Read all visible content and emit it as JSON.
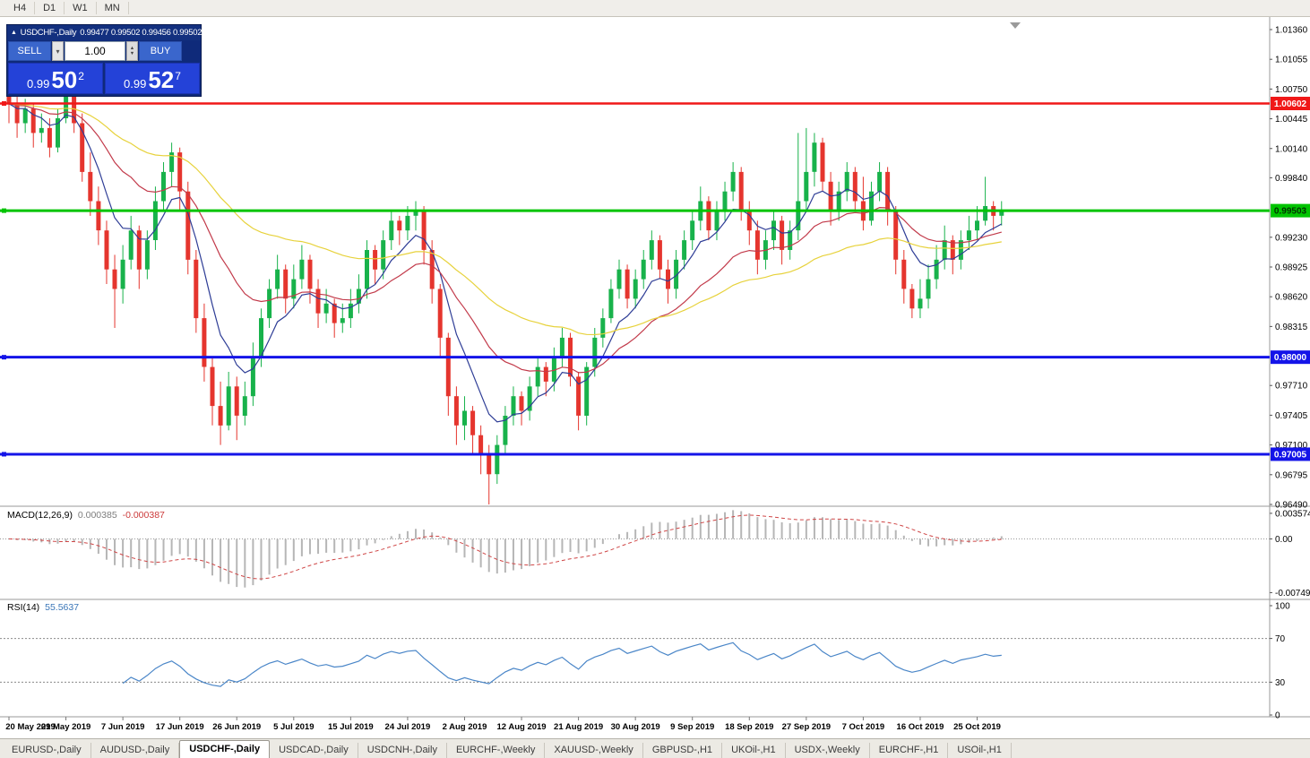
{
  "toolbar": {
    "timeframes": [
      "H4",
      "D1",
      "W1",
      "MN"
    ]
  },
  "icons": {
    "collapse": "▲",
    "dropdown": "▾",
    "spin_up": "▲",
    "spin_down": "▼"
  },
  "chart_header": {
    "symbol": "USDCHF-,Daily",
    "ohlc": "0.99477 0.99502 0.99456 0.99502"
  },
  "trade_panel": {
    "sell_label": "SELL",
    "buy_label": "BUY",
    "volume": "1.00",
    "sell_price": {
      "prefix": "0.99",
      "big": "50",
      "sup": "2"
    },
    "buy_price": {
      "prefix": "0.99",
      "big": "52",
      "sup": "7"
    }
  },
  "colors": {
    "bull": "#18b24b",
    "bear": "#e5352e",
    "macd_hist": "#b6b6b6",
    "macd_signal": "#cf4646",
    "rsi": "#4a86c8"
  },
  "price_axis": {
    "ticks": [
      "1.01360",
      "1.01055",
      "1.00750",
      "1.00445",
      "1.00140",
      "0.99840",
      "0.99230",
      "0.98925",
      "0.98620",
      "0.98315",
      "0.97710",
      "0.97405",
      "0.97100",
      "0.96795",
      "0.96490"
    ]
  },
  "hlines": [
    {
      "price": 1.00602,
      "label": "1.00602",
      "color": "#f01818",
      "text": "#ffffff",
      "width": 2.5
    },
    {
      "price": 0.99503,
      "label": "0.99503",
      "color": "#00c400",
      "text": "#003300",
      "width": 3
    },
    {
      "price": 0.98,
      "label": "0.98000",
      "color": "#1414e8",
      "text": "#ffffff",
      "width": 3
    },
    {
      "price": 0.97005,
      "label": "0.97005",
      "color": "#1414e8",
      "text": "#ffffff",
      "width": 3
    }
  ],
  "macd_panel": {
    "title": "MACD(12,26,9)",
    "value_main": "0.000385",
    "value_signal": "-0.000387",
    "axis": [
      "0.003574",
      "0.00",
      "-0.00749"
    ]
  },
  "rsi_panel": {
    "title": "RSI(14)",
    "value": "55.5637",
    "axis": [
      "100",
      "70",
      "30",
      "0"
    ],
    "levels": [
      70,
      30
    ]
  },
  "chart_data": {
    "type": "candlestick",
    "symbol": "USDCHF",
    "timeframe": "Daily",
    "y_range": [
      0.9649,
      1.0136
    ],
    "rsi_period": 14,
    "macd": {
      "fast": 12,
      "slow": 26,
      "signal": 9
    },
    "moving_averages": [
      {
        "name": "fast",
        "period": 7,
        "color": "#2e3d96"
      },
      {
        "name": "medium",
        "period": 20,
        "color": "#c23a4a"
      },
      {
        "name": "slow",
        "period": 45,
        "color": "#e7d23c"
      }
    ],
    "x_labels": [
      "20 May 2019",
      "29 May 2019",
      "7 Jun 2019",
      "17 Jun 2019",
      "26 Jun 2019",
      "5 Jul 2019",
      "15 Jul 2019",
      "24 Jul 2019",
      "2 Aug 2019",
      "12 Aug 2019",
      "21 Aug 2019",
      "30 Aug 2019",
      "9 Sep 2019",
      "18 Sep 2019",
      "27 Sep 2019",
      "7 Oct 2019",
      "16 Oct 2019",
      "25 Oct 2019"
    ],
    "candles_ohlc": [
      [
        1.008,
        1.009,
        1.004,
        1.006
      ],
      [
        1.006,
        1.007,
        1.0025,
        1.004
      ],
      [
        1.004,
        1.0065,
        1.003,
        1.0055
      ],
      [
        1.0055,
        1.006,
        1.0015,
        1.003
      ],
      [
        1.003,
        1.005,
        1.002,
        1.0035
      ],
      [
        1.0035,
        1.0045,
        1.0005,
        1.0015
      ],
      [
        1.0015,
        1.0055,
        1.001,
        1.0045
      ],
      [
        1.0045,
        1.009,
        1.004,
        1.0075
      ],
      [
        1.0075,
        1.0085,
        1.003,
        1.004
      ],
      [
        1.004,
        1.005,
        0.998,
        0.999
      ],
      [
        0.999,
        1.001,
        0.9945,
        0.996
      ],
      [
        0.996,
        0.9975,
        0.9915,
        0.993
      ],
      [
        0.993,
        0.994,
        0.9875,
        0.989
      ],
      [
        0.989,
        0.9905,
        0.983,
        0.987
      ],
      [
        0.987,
        0.9915,
        0.9855,
        0.99
      ],
      [
        0.99,
        0.9945,
        0.989,
        0.993
      ],
      [
        0.993,
        0.9935,
        0.987,
        0.989
      ],
      [
        0.989,
        0.993,
        0.988,
        0.992
      ],
      [
        0.992,
        0.9975,
        0.991,
        0.996
      ],
      [
        0.996,
        1.0,
        0.995,
        0.999
      ],
      [
        0.999,
        1.002,
        0.9975,
        1.001
      ],
      [
        1.001,
        1.0015,
        0.995,
        0.997
      ],
      [
        0.997,
        0.998,
        0.9885,
        0.99
      ],
      [
        0.99,
        0.991,
        0.9825,
        0.984
      ],
      [
        0.984,
        0.9855,
        0.9775,
        0.979
      ],
      [
        0.979,
        0.98,
        0.973,
        0.975
      ],
      [
        0.975,
        0.9775,
        0.971,
        0.973
      ],
      [
        0.973,
        0.9785,
        0.9725,
        0.977
      ],
      [
        0.977,
        0.978,
        0.9715,
        0.974
      ],
      [
        0.974,
        0.9775,
        0.973,
        0.976
      ],
      [
        0.976,
        0.9815,
        0.975,
        0.98
      ],
      [
        0.98,
        0.985,
        0.979,
        0.984
      ],
      [
        0.984,
        0.988,
        0.983,
        0.987
      ],
      [
        0.987,
        0.9905,
        0.986,
        0.989
      ],
      [
        0.989,
        0.9895,
        0.9845,
        0.986
      ],
      [
        0.986,
        0.9895,
        0.985,
        0.988
      ],
      [
        0.988,
        0.9915,
        0.987,
        0.99
      ],
      [
        0.99,
        0.9905,
        0.9855,
        0.987
      ],
      [
        0.987,
        0.988,
        0.983,
        0.9845
      ],
      [
        0.9845,
        0.987,
        0.9835,
        0.9855
      ],
      [
        0.9855,
        0.986,
        0.982,
        0.9835
      ],
      [
        0.9835,
        0.9855,
        0.9825,
        0.984
      ],
      [
        0.984,
        0.987,
        0.983,
        0.9855
      ],
      [
        0.9855,
        0.9885,
        0.9845,
        0.987
      ],
      [
        0.987,
        0.992,
        0.986,
        0.991
      ],
      [
        0.991,
        0.9915,
        0.9875,
        0.989
      ],
      [
        0.989,
        0.993,
        0.988,
        0.992
      ],
      [
        0.992,
        0.995,
        0.991,
        0.994
      ],
      [
        0.994,
        0.9945,
        0.9915,
        0.993
      ],
      [
        0.993,
        0.9955,
        0.992,
        0.9945
      ],
      [
        0.9945,
        0.996,
        0.993,
        0.995
      ],
      [
        0.995,
        0.9955,
        0.9895,
        0.991
      ],
      [
        0.991,
        0.992,
        0.9855,
        0.987
      ],
      [
        0.987,
        0.9875,
        0.98,
        0.982
      ],
      [
        0.982,
        0.9825,
        0.974,
        0.976
      ],
      [
        0.976,
        0.977,
        0.971,
        0.973
      ],
      [
        0.973,
        0.976,
        0.9715,
        0.9745
      ],
      [
        0.9745,
        0.975,
        0.97,
        0.972
      ],
      [
        0.972,
        0.973,
        0.968,
        0.97
      ],
      [
        0.97,
        0.971,
        0.9649,
        0.968
      ],
      [
        0.968,
        0.972,
        0.967,
        0.971
      ],
      [
        0.971,
        0.975,
        0.97,
        0.974
      ],
      [
        0.974,
        0.977,
        0.973,
        0.976
      ],
      [
        0.976,
        0.9765,
        0.973,
        0.9745
      ],
      [
        0.9745,
        0.978,
        0.9735,
        0.977
      ],
      [
        0.977,
        0.98,
        0.976,
        0.979
      ],
      [
        0.979,
        0.9795,
        0.976,
        0.9775
      ],
      [
        0.9775,
        0.981,
        0.9765,
        0.98
      ],
      [
        0.98,
        0.983,
        0.979,
        0.982
      ],
      [
        0.982,
        0.9825,
        0.977,
        0.978
      ],
      [
        0.978,
        0.9785,
        0.9725,
        0.974
      ],
      [
        0.974,
        0.9795,
        0.973,
        0.979
      ],
      [
        0.979,
        0.983,
        0.978,
        0.982
      ],
      [
        0.982,
        0.985,
        0.981,
        0.984
      ],
      [
        0.984,
        0.988,
        0.9835,
        0.987
      ],
      [
        0.987,
        0.99,
        0.986,
        0.989
      ],
      [
        0.989,
        0.9895,
        0.985,
        0.986
      ],
      [
        0.986,
        0.989,
        0.985,
        0.988
      ],
      [
        0.988,
        0.991,
        0.987,
        0.99
      ],
      [
        0.99,
        0.993,
        0.989,
        0.992
      ],
      [
        0.992,
        0.9925,
        0.988,
        0.989
      ],
      [
        0.989,
        0.99,
        0.9855,
        0.987
      ],
      [
        0.987,
        0.991,
        0.986,
        0.99
      ],
      [
        0.99,
        0.993,
        0.989,
        0.992
      ],
      [
        0.992,
        0.995,
        0.991,
        0.994
      ],
      [
        0.994,
        0.9975,
        0.993,
        0.996
      ],
      [
        0.996,
        0.9965,
        0.992,
        0.993
      ],
      [
        0.993,
        0.996,
        0.992,
        0.995
      ],
      [
        0.995,
        0.998,
        0.994,
        0.997
      ],
      [
        0.997,
        1.0,
        0.996,
        0.999
      ],
      [
        0.999,
        0.9995,
        0.994,
        0.995
      ],
      [
        0.995,
        0.996,
        0.9915,
        0.993
      ],
      [
        0.993,
        0.994,
        0.9885,
        0.99
      ],
      [
        0.99,
        0.993,
        0.989,
        0.992
      ],
      [
        0.992,
        0.995,
        0.991,
        0.994
      ],
      [
        0.994,
        0.9945,
        0.9895,
        0.991
      ],
      [
        0.991,
        0.994,
        0.99,
        0.993
      ],
      [
        0.993,
        1.003,
        0.992,
        0.996
      ],
      [
        0.996,
        1.0035,
        0.995,
        0.999
      ],
      [
        0.999,
        1.003,
        0.9975,
        1.002
      ],
      [
        1.002,
        1.0025,
        0.997,
        0.998
      ],
      [
        0.998,
        0.999,
        0.9935,
        0.995
      ],
      [
        0.995,
        0.998,
        0.994,
        0.997
      ],
      [
        0.997,
        1.0,
        0.996,
        0.999
      ],
      [
        0.999,
        0.9995,
        0.995,
        0.996
      ],
      [
        0.996,
        0.9985,
        0.993,
        0.994
      ],
      [
        0.994,
        0.998,
        0.9935,
        0.997
      ],
      [
        0.997,
        1.0,
        0.996,
        0.999
      ],
      [
        0.999,
        0.9995,
        0.9935,
        0.995
      ],
      [
        0.995,
        0.9955,
        0.9885,
        0.99
      ],
      [
        0.99,
        0.991,
        0.9855,
        0.987
      ],
      [
        0.987,
        0.9875,
        0.984,
        0.985
      ],
      [
        0.985,
        0.988,
        0.984,
        0.986
      ],
      [
        0.986,
        0.9895,
        0.985,
        0.988
      ],
      [
        0.988,
        0.9915,
        0.987,
        0.99
      ],
      [
        0.99,
        0.9935,
        0.989,
        0.992
      ],
      [
        0.992,
        0.9925,
        0.9885,
        0.99
      ],
      [
        0.99,
        0.993,
        0.989,
        0.992
      ],
      [
        0.992,
        0.9945,
        0.991,
        0.993
      ],
      [
        0.993,
        0.9955,
        0.992,
        0.994
      ],
      [
        0.994,
        0.9985,
        0.9935,
        0.9955
      ],
      [
        0.9955,
        0.996,
        0.993,
        0.9945
      ],
      [
        0.9945,
        0.996,
        0.9935,
        0.995
      ]
    ]
  },
  "bottom_tabs": {
    "tabs": [
      {
        "label": "EURUSD-,Daily",
        "active": false
      },
      {
        "label": "AUDUSD-,Daily",
        "active": false
      },
      {
        "label": "USDCHF-,Daily",
        "active": true
      },
      {
        "label": "USDCAD-,Daily",
        "active": false
      },
      {
        "label": "USDCNH-,Daily",
        "active": false
      },
      {
        "label": "EURCHF-,Weekly",
        "active": false
      },
      {
        "label": "XAUUSD-,Weekly",
        "active": false
      },
      {
        "label": "GBPUSD-,H1",
        "active": false
      },
      {
        "label": "UKOil-,H1",
        "active": false
      },
      {
        "label": "USDX-,Weekly",
        "active": false
      },
      {
        "label": "EURCHF-,H1",
        "active": false
      },
      {
        "label": "USOil-,H1",
        "active": false
      }
    ]
  }
}
